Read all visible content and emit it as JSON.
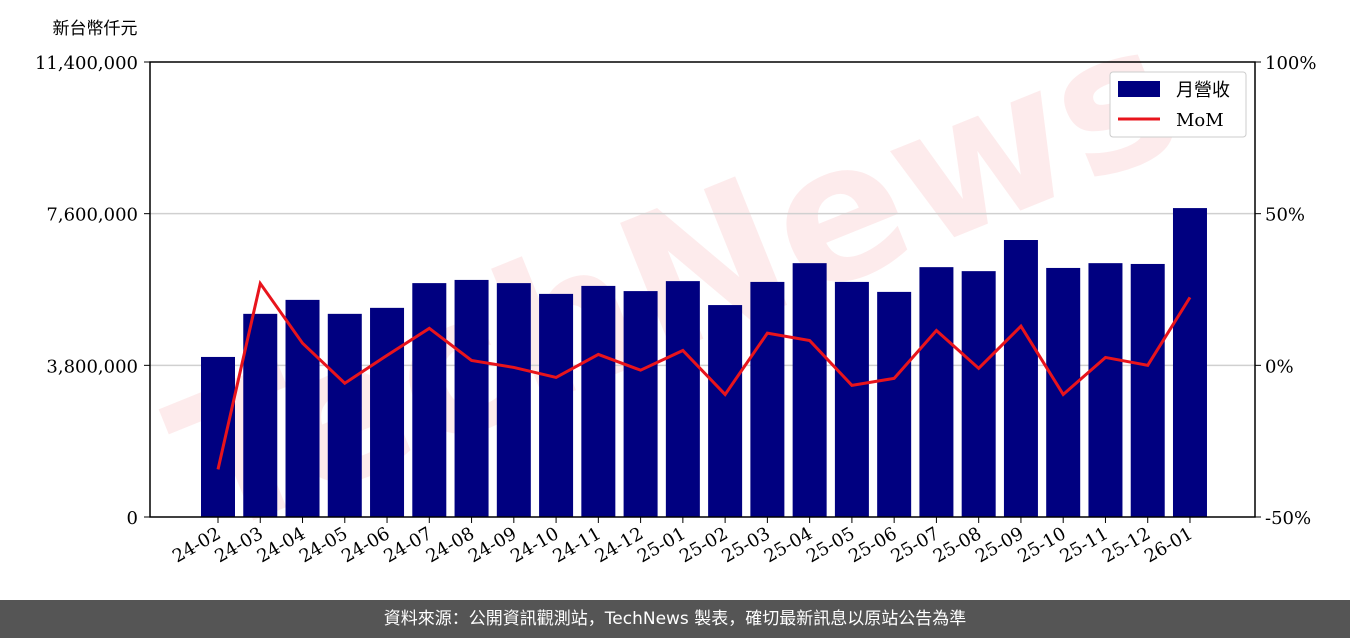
{
  "chart_data": {
    "type": "bar_line",
    "y_axis_label": "新台幣仟元",
    "watermark": "TechNews",
    "categories": [
      "24-02",
      "24-03",
      "24-04",
      "24-05",
      "24-06",
      "24-07",
      "24-08",
      "24-09",
      "24-10",
      "24-11",
      "24-12",
      "25-01",
      "25-02",
      "25-03",
      "25-04",
      "25-05",
      "25-06",
      "25-07",
      "25-08",
      "25-09",
      "25-10",
      "25-11",
      "25-12",
      "26-01"
    ],
    "series": [
      {
        "name": "月營收",
        "type": "bar",
        "color": "#000080",
        "values": [
          4010000,
          5090000,
          5440000,
          5090000,
          5240000,
          5860000,
          5940000,
          5860000,
          5590000,
          5790000,
          5660000,
          5910000,
          5310000,
          5890000,
          6360000,
          5890000,
          5640000,
          6260000,
          6160000,
          6940000,
          6240000,
          6360000,
          6340000,
          7740000
        ]
      },
      {
        "name": "MoM",
        "type": "line",
        "axis": "y2",
        "color": "#e8141c",
        "values": [
          -34.3,
          27,
          7.3,
          -5.9,
          3.3,
          12.2,
          1.6,
          -0.7,
          -4,
          3.6,
          -1.6,
          4.9,
          -9.6,
          10.6,
          8.2,
          -6.6,
          -4.3,
          11.5,
          -1,
          12.9,
          -9.6,
          2.6,
          0,
          22.4
        ]
      }
    ],
    "ylim": [
      0,
      11400000
    ],
    "yticks": [
      0,
      {
        "value": 3800000,
        "label": "3,800,000"
      },
      {
        "value": 7600000,
        "label": "7,600,000"
      },
      {
        "value": 11400000,
        "label": "11,400,000"
      }
    ],
    "y2lim": [
      -50,
      100
    ],
    "y2ticks": [
      {
        "value": -50,
        "label": "-50%"
      },
      {
        "value": 0,
        "label": "0%"
      },
      {
        "value": 50,
        "label": "50%"
      },
      {
        "value": 100,
        "label": "100%"
      }
    ],
    "grid": true,
    "legend": "upper right"
  },
  "footer": "資料來源：公開資訊觀測站，TechNews 製表，確切最新訊息以原站公告為準"
}
